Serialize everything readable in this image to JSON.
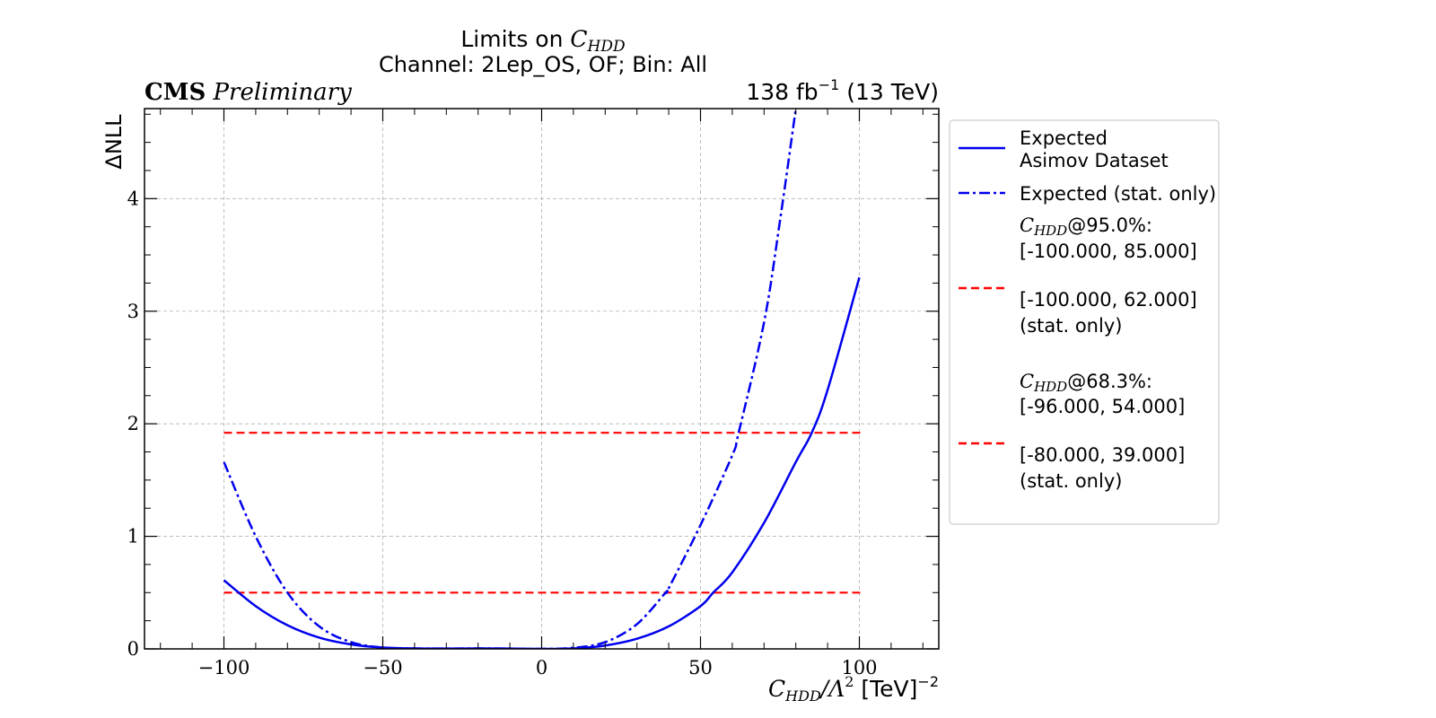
{
  "chart_data": {
    "type": "line",
    "title": "Limits on C_HDD",
    "title_prefix": "Limits on ",
    "title_symbol": "C",
    "title_symbol_sub": "HDD",
    "subtitle": "Channel: 2Lep_OS, OF; Bin: All",
    "experiment_bold": "CMS",
    "experiment_italic": "Preliminary",
    "lumi_prefix": "138 fb",
    "lumi_exp": "−1",
    "lumi_suffix": " (13 TeV)",
    "xlabel": "C_HDD/Λ^2 [TeV]^-2",
    "xlabel_symbol": "C",
    "xlabel_sub": "HDD",
    "xlabel_mid": "/Λ",
    "xlabel_sup": "2",
    "xlabel_unit": " [TeV]",
    "xlabel_unit_sup": "−2",
    "ylabel": "ΔNLL",
    "xlim": [
      -125,
      125
    ],
    "ylim": [
      0,
      4.8
    ],
    "x_ticks": [
      -100,
      -50,
      0,
      50,
      100
    ],
    "x_tick_labels": [
      "−100",
      "−50",
      "0",
      "50",
      "100"
    ],
    "y_ticks": [
      0,
      1,
      2,
      3,
      4
    ],
    "y_tick_labels": [
      "0",
      "1",
      "2",
      "3",
      "4"
    ],
    "grid": true,
    "legend_position": "outside-right",
    "series": [
      {
        "name": "Expected Asimov Dataset",
        "style": "solid",
        "color": "#0000ee",
        "x": [
          -100,
          -90,
          -80,
          -70,
          -60,
          -50,
          -40,
          -30,
          -20,
          -10,
          0,
          10,
          20,
          30,
          40,
          50,
          54,
          60,
          70,
          80,
          85,
          90,
          100
        ],
        "y": [
          0.61,
          0.38,
          0.21,
          0.1,
          0.04,
          0.012,
          0.004,
          0.003,
          0.004,
          0.003,
          0.0,
          0.004,
          0.03,
          0.09,
          0.2,
          0.38,
          0.5,
          0.68,
          1.12,
          1.66,
          1.92,
          2.3,
          3.3
        ]
      },
      {
        "name": "Expected (stat. only)",
        "style": "dashdot",
        "color": "#0000ee",
        "x": [
          -100,
          -90,
          -80,
          -70,
          -60,
          -50,
          -40,
          -30,
          -20,
          -10,
          0,
          10,
          20,
          30,
          39,
          40,
          50,
          60,
          62,
          70,
          75,
          80
        ],
        "y": [
          1.66,
          1.0,
          0.5,
          0.2,
          0.06,
          0.012,
          0.004,
          0.003,
          0.004,
          0.003,
          0.0,
          0.01,
          0.06,
          0.22,
          0.5,
          0.54,
          1.1,
          1.72,
          1.92,
          2.9,
          3.8,
          4.8
        ]
      }
    ],
    "hlines": [
      {
        "y": 1.92,
        "x_range": [
          -100,
          101
        ],
        "style": "dashed",
        "color": "#ff0000",
        "meaning": "95.0%"
      },
      {
        "y": 0.5,
        "x_range": [
          -100,
          101
        ],
        "style": "dashed",
        "color": "#ff0000",
        "meaning": "68.3%"
      }
    ],
    "legend": {
      "entries": [
        {
          "key": "solid-blue",
          "line1": "Expected",
          "line2": "Asimov Dataset"
        },
        {
          "key": "dashdot-blue",
          "line1": "Expected (stat. only)"
        },
        {
          "key": "none",
          "symbol": "C",
          "sub": "HDD",
          "line1_suffix": "@95.0%:",
          "line2": "[-100.000, 85.000]"
        },
        {
          "key": "dashed-red",
          "line1": "[-100.000, 62.000]",
          "line2": "(stat. only)"
        },
        {
          "key": "none",
          "symbol": "C",
          "sub": "HDD",
          "line1_suffix": "@68.3%:",
          "line2": "[-96.000, 54.000]"
        },
        {
          "key": "dashed-red",
          "line1": "[-80.000, 39.000]",
          "line2": "(stat. only)"
        }
      ]
    }
  }
}
